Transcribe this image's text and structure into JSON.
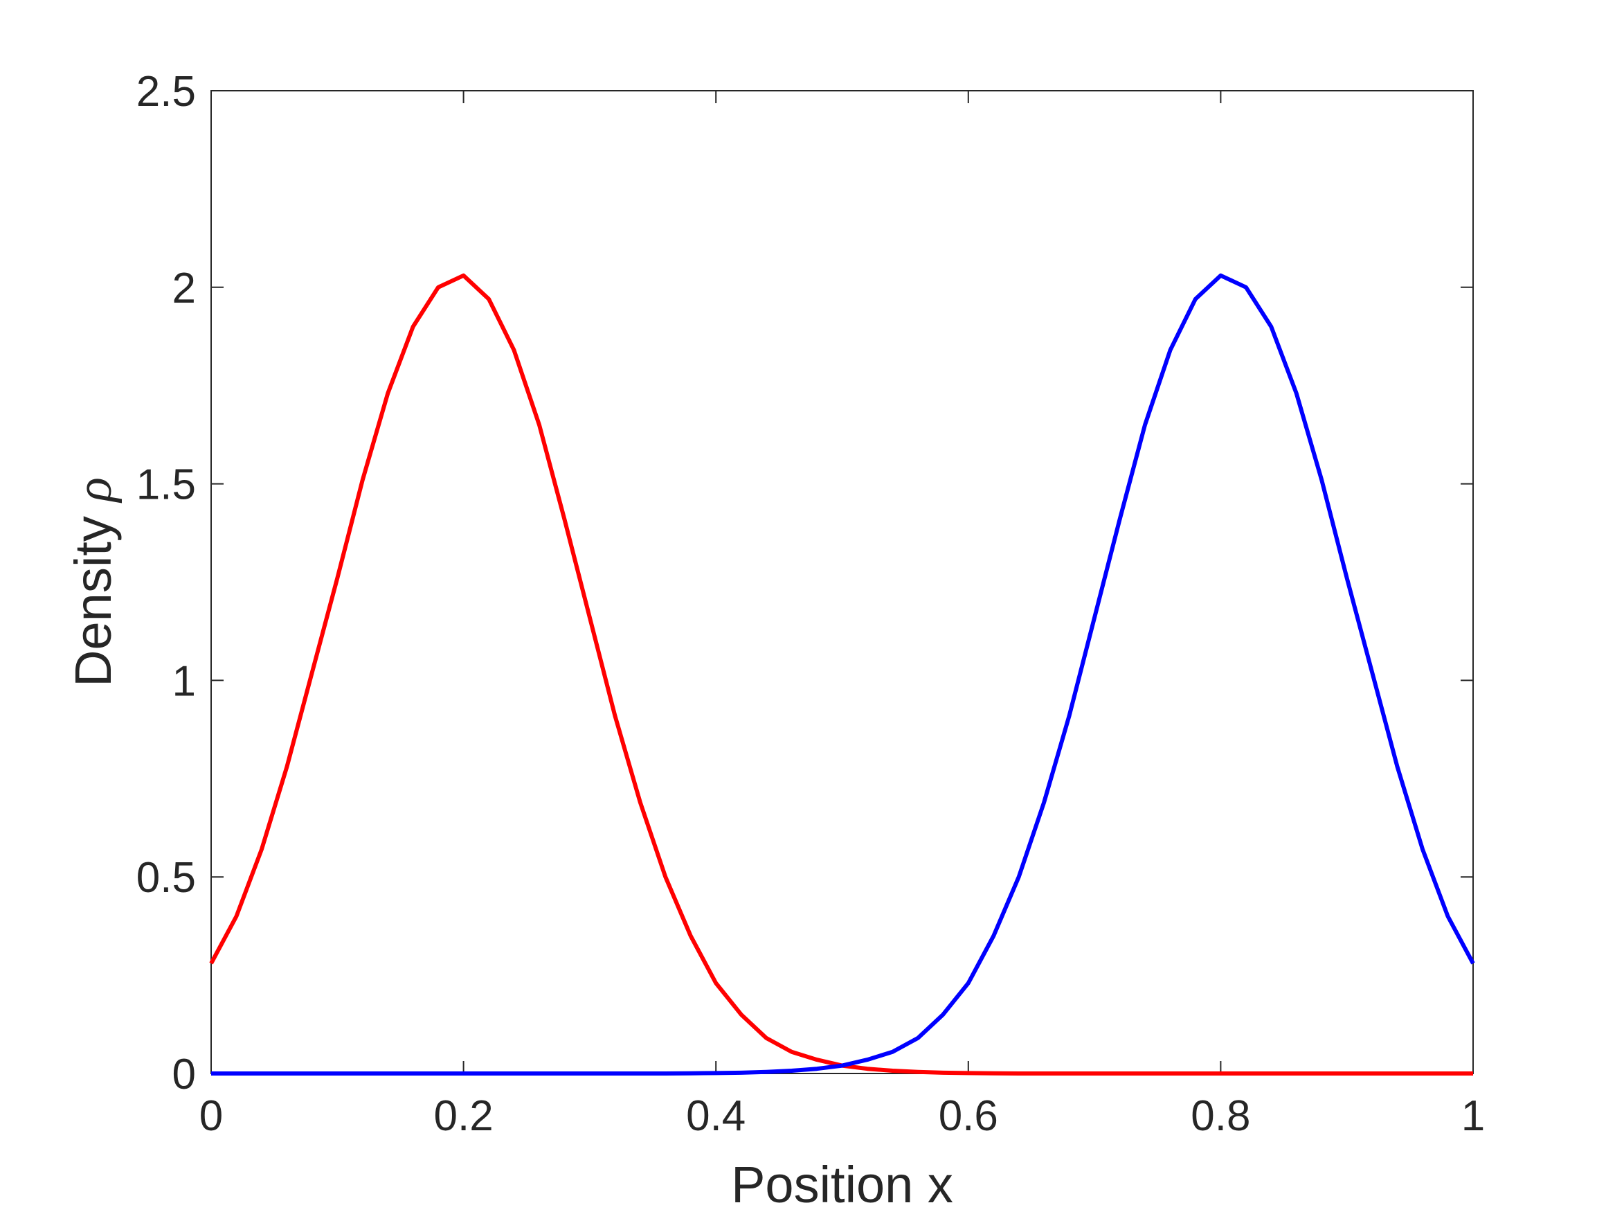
{
  "chart_data": {
    "type": "line",
    "title": "",
    "xlabel": "Position x",
    "ylabel_text": "Density ",
    "ylabel_symbol": "ρ",
    "xlim": [
      0,
      1
    ],
    "ylim": [
      0,
      2.5
    ],
    "x_ticks": [
      0,
      0.2,
      0.4,
      0.6,
      0.8,
      1
    ],
    "x_tick_labels": [
      "0",
      "0.2",
      "0.4",
      "0.6",
      "0.8",
      "1"
    ],
    "y_ticks": [
      0,
      0.5,
      1,
      1.5,
      2,
      2.5
    ],
    "y_tick_labels": [
      "0",
      "0.5",
      "1",
      "1.5",
      "2",
      "2.5"
    ],
    "grid": false,
    "legend": "none",
    "series": [
      {
        "color": "#ff0000",
        "x": [
          0,
          0.02,
          0.04,
          0.06,
          0.08,
          0.1,
          0.12,
          0.14,
          0.16,
          0.18,
          0.2,
          0.22,
          0.24,
          0.26,
          0.28,
          0.3,
          0.32,
          0.34,
          0.36,
          0.38,
          0.4,
          0.42,
          0.44,
          0.46,
          0.48,
          0.5,
          0.52,
          0.54,
          0.56,
          0.58,
          0.6,
          0.62,
          0.64,
          0.66,
          0.68,
          0.7,
          0.72,
          0.74,
          0.76,
          0.78,
          0.8,
          0.82,
          0.84,
          0.86,
          0.88,
          0.9,
          0.92,
          0.94,
          0.96,
          0.98,
          1
        ],
        "y": [
          0.28,
          0.4,
          0.57,
          0.78,
          1.02,
          1.26,
          1.51,
          1.73,
          1.9,
          2.0,
          2.03,
          1.97,
          1.84,
          1.65,
          1.41,
          1.16,
          0.91,
          0.69,
          0.5,
          0.35,
          0.23,
          0.15,
          0.09,
          0.055,
          0.035,
          0.02,
          0.012,
          0.007,
          0.004,
          0.002,
          0.001,
          0.0005,
          0,
          0,
          0,
          0,
          0,
          0,
          0,
          0,
          0,
          0,
          0,
          0,
          0,
          0,
          0,
          0,
          0,
          0,
          0
        ]
      },
      {
        "color": "#0000ff",
        "x": [
          0,
          0.02,
          0.04,
          0.06,
          0.08,
          0.1,
          0.12,
          0.14,
          0.16,
          0.18,
          0.2,
          0.22,
          0.24,
          0.26,
          0.28,
          0.3,
          0.32,
          0.34,
          0.36,
          0.38,
          0.4,
          0.42,
          0.44,
          0.46,
          0.48,
          0.5,
          0.52,
          0.54,
          0.56,
          0.58,
          0.6,
          0.62,
          0.64,
          0.66,
          0.68,
          0.7,
          0.72,
          0.74,
          0.76,
          0.78,
          0.8,
          0.82,
          0.84,
          0.86,
          0.88,
          0.9,
          0.92,
          0.94,
          0.96,
          0.98,
          1
        ],
        "y": [
          0,
          0,
          0,
          0,
          0,
          0,
          0,
          0,
          0,
          0,
          0,
          0,
          0,
          0,
          0,
          0,
          0,
          0,
          0,
          0.0005,
          0.001,
          0.002,
          0.004,
          0.007,
          0.012,
          0.02,
          0.035,
          0.055,
          0.09,
          0.15,
          0.23,
          0.35,
          0.5,
          0.69,
          0.91,
          1.16,
          1.41,
          1.65,
          1.84,
          1.97,
          2.03,
          2.0,
          1.9,
          1.73,
          1.51,
          1.26,
          1.02,
          0.78,
          0.57,
          0.4,
          0.28
        ]
      }
    ]
  }
}
